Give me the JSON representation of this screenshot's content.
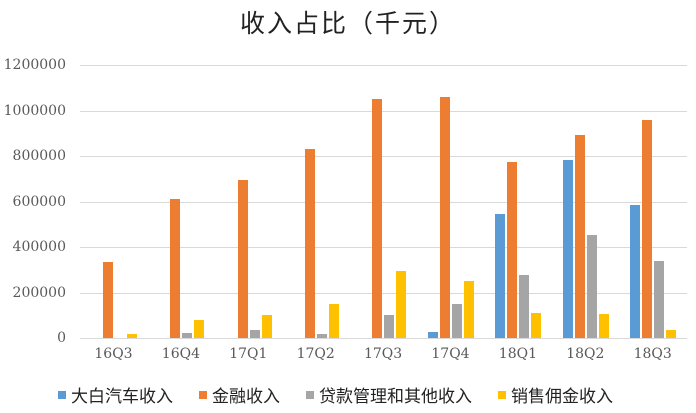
{
  "chart_data": {
    "type": "bar",
    "title": "收入占比（千元）",
    "xlabel": "",
    "ylabel": "",
    "ylim": [
      0,
      1200000
    ],
    "yticks": [
      0,
      200000,
      400000,
      600000,
      800000,
      1000000,
      1200000
    ],
    "ytick_labels": [
      "0",
      "200000",
      "400000",
      "600000",
      "800000",
      "1000000",
      "1200000"
    ],
    "grid": true,
    "legend_position": "bottom",
    "categories": [
      "16Q3",
      "16Q4",
      "17Q1",
      "17Q2",
      "17Q3",
      "17Q4",
      "18Q1",
      "18Q2",
      "18Q3"
    ],
    "series": [
      {
        "name": "大白汽车收入",
        "color": "#5B9BD5",
        "values": [
          0,
          0,
          0,
          0,
          0,
          26000,
          545000,
          782000,
          585000
        ]
      },
      {
        "name": "金融收入",
        "color": "#ED7D31",
        "values": [
          334000,
          611000,
          695000,
          831000,
          1050000,
          1059000,
          774000,
          892000,
          958000
        ]
      },
      {
        "name": "贷款管理和其他收入",
        "color": "#A5A5A5",
        "values": [
          0,
          22000,
          35000,
          18000,
          101000,
          149000,
          277000,
          453000,
          338000
        ]
      },
      {
        "name": "销售佣金收入",
        "color": "#FFC000",
        "values": [
          17000,
          79000,
          101000,
          149000,
          294000,
          251000,
          110000,
          105000,
          35000
        ]
      }
    ]
  }
}
